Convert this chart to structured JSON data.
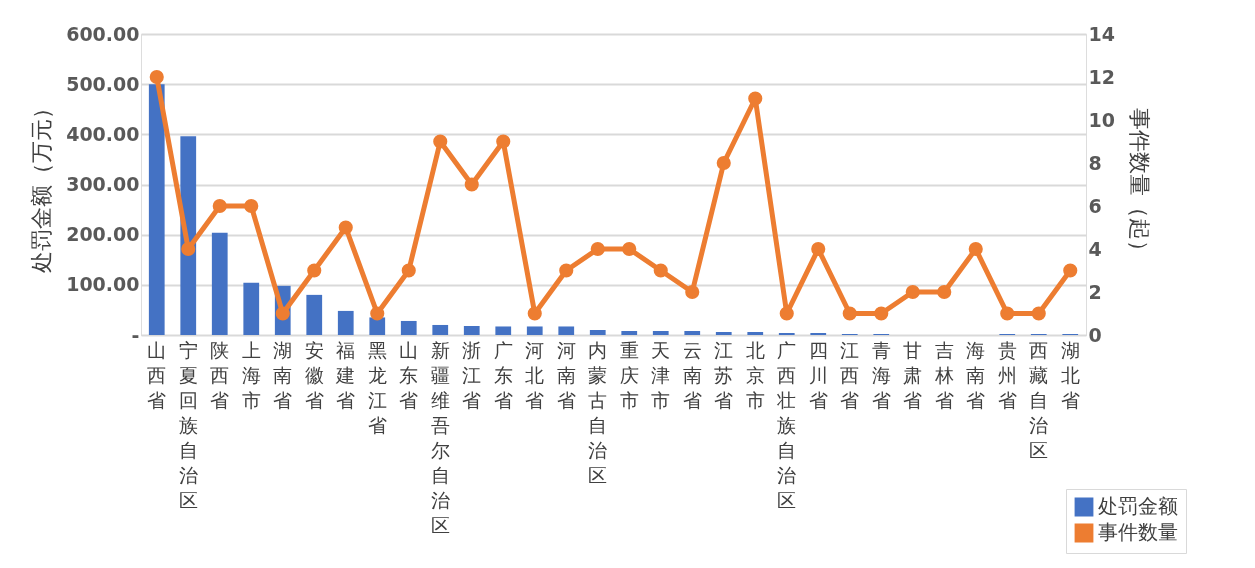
{
  "chart_data": {
    "type": "bar",
    "categories": [
      "山西省",
      "宁夏回族自治区",
      "陕西省",
      "上海市",
      "湖南省",
      "安徽省",
      "福建省",
      "黑龙江省",
      "山东省",
      "新疆维吾尔自治区",
      "浙江省",
      "广东省",
      "河北省",
      "河南省",
      "内蒙古自治区",
      "重庆市",
      "天津市",
      "云南省",
      "江苏省",
      "北京市",
      "广西壮族自治区",
      "四川省",
      "江西省",
      "青海省",
      "甘肃省",
      "吉林省",
      "海南省",
      "贵州省",
      "西藏自治区",
      "湖北省"
    ],
    "series": [
      {
        "name": "处罚金额",
        "color": "#4472c4",
        "values": [
          500,
          396,
          204,
          104,
          98,
          80,
          48,
          35,
          28,
          20,
          18,
          17,
          17,
          17,
          10,
          8,
          8,
          8,
          6,
          6,
          4,
          4,
          2,
          2,
          0,
          0,
          0,
          2,
          2,
          2
        ]
      },
      {
        "name": "事件数量",
        "type": "line",
        "axis": "y2",
        "color": "#ed7d31",
        "marker": "circle",
        "values": [
          12,
          4,
          6,
          6,
          1,
          3,
          5,
          1,
          3,
          9,
          7,
          9,
          1,
          3,
          4,
          4,
          3,
          2,
          8,
          11,
          1,
          4,
          1,
          1,
          2,
          2,
          4,
          1,
          1,
          3
        ]
      }
    ],
    "ylabel": "处罚金额（万元）",
    "y2label": "事件数量（起）",
    "ylim": [
      0,
      600
    ],
    "yticks": [
      {
        "value": 0,
        "label": "-"
      },
      {
        "value": 100,
        "label": "100.00"
      },
      {
        "value": 200,
        "label": "200.00"
      },
      {
        "value": 300,
        "label": "300.00"
      },
      {
        "value": 400,
        "label": "400.00"
      },
      {
        "value": 500,
        "label": "500.00"
      },
      {
        "value": 600,
        "label": "600.00"
      }
    ],
    "y2lim": [
      0,
      14
    ],
    "y2ticks": [
      0,
      2,
      4,
      6,
      8,
      10,
      12,
      14
    ],
    "grid": "y",
    "legend": "bottom right"
  }
}
